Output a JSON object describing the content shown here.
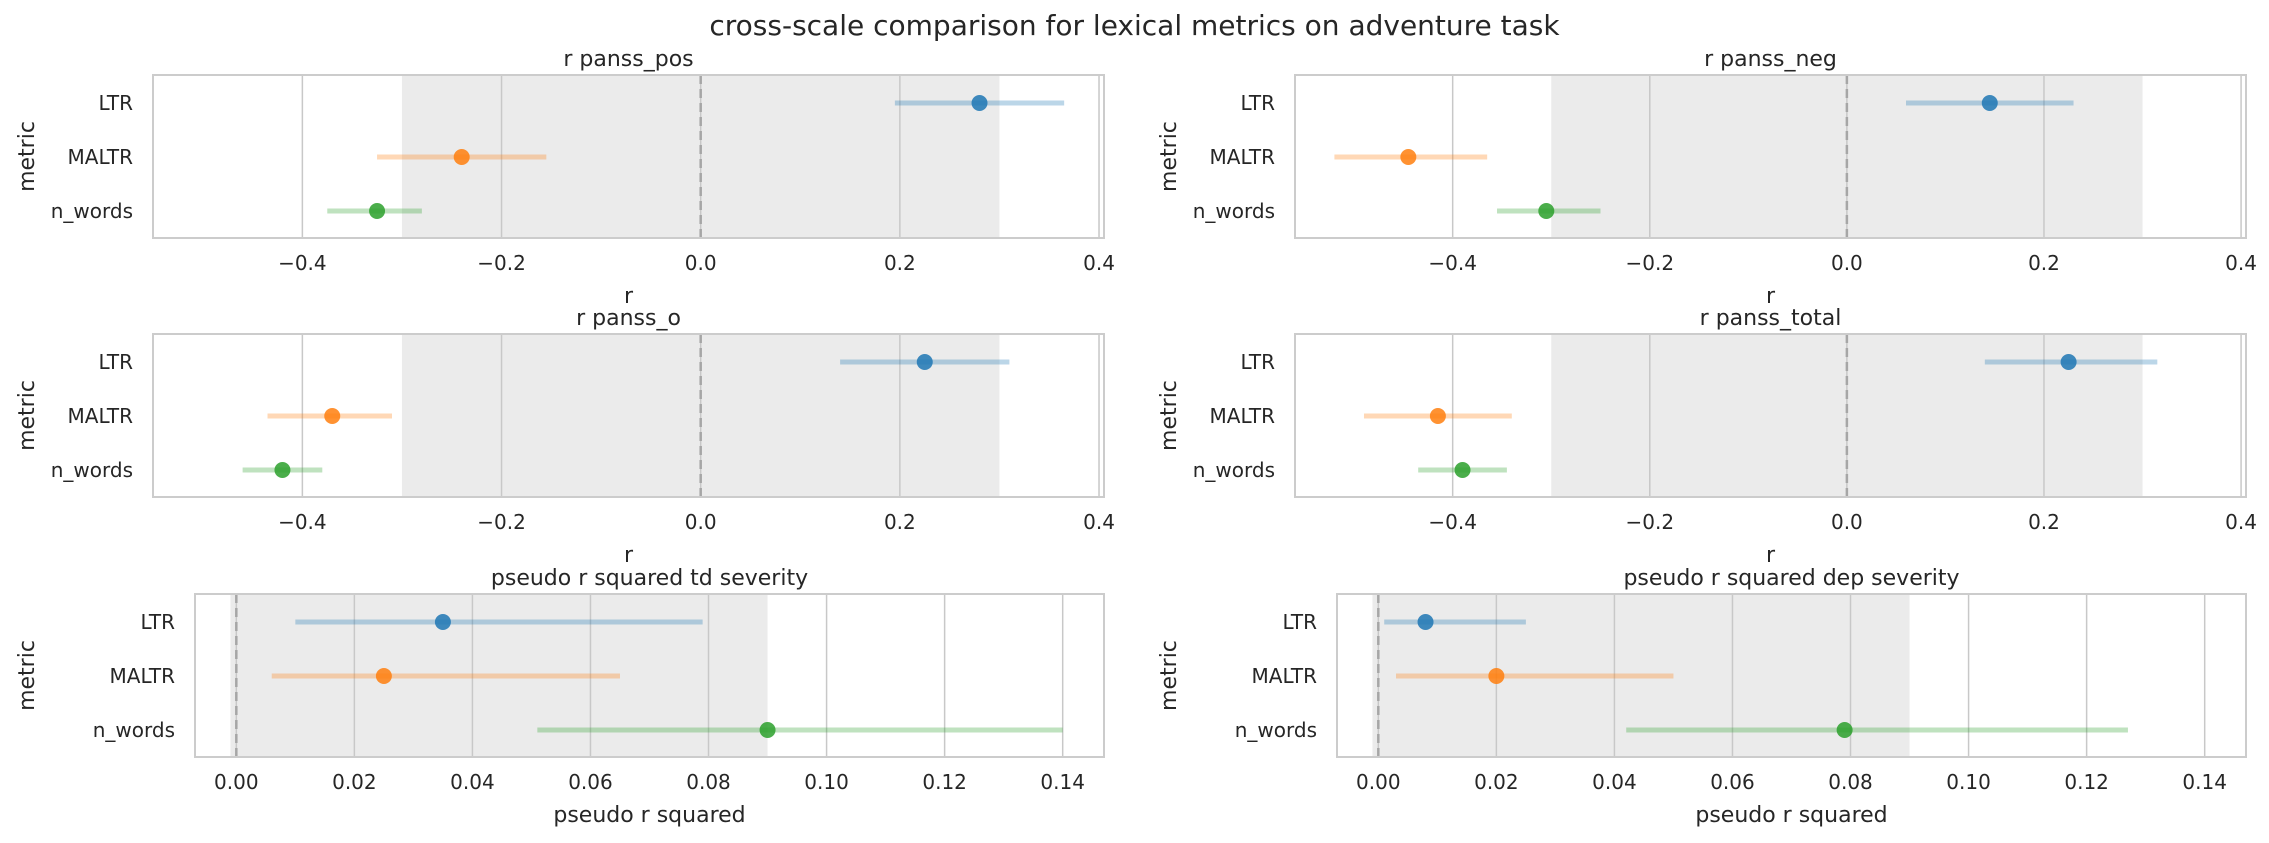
{
  "suptitle": "cross-scale comparison for lexical metrics on adventure task",
  "colors": {
    "LTR": "#1f77b4",
    "MALTR": "#ff7f0e",
    "n_words": "#2ca02c",
    "band": "#ebebeb",
    "grid": "#c8c8c8",
    "frame": "#cccccc"
  },
  "chart_data": [
    {
      "type": "scatter",
      "title": "r panss_pos",
      "xlabel": "r",
      "ylabel": "metric",
      "xlim": [
        -0.55,
        0.405
      ],
      "xticks": [
        -0.4,
        -0.2,
        0.0,
        0.2,
        0.4
      ],
      "xtick_labels": [
        "−0.4",
        "−0.2",
        "0.0",
        "0.2",
        "0.4"
      ],
      "band": [
        -0.3,
        0.3
      ],
      "refline": 0.0,
      "categories": [
        "LTR",
        "MALTR",
        "n_words"
      ],
      "points": [
        {
          "metric": "LTR",
          "value": 0.28,
          "ci": [
            0.195,
            0.365
          ]
        },
        {
          "metric": "MALTR",
          "value": -0.24,
          "ci": [
            -0.325,
            -0.155
          ]
        },
        {
          "metric": "n_words",
          "value": -0.325,
          "ci": [
            -0.375,
            -0.28
          ]
        }
      ]
    },
    {
      "type": "scatter",
      "title": "r panss_neg",
      "xlabel": "r",
      "ylabel": "metric",
      "xlim": [
        -0.56,
        0.405
      ],
      "xticks": [
        -0.4,
        -0.2,
        0.0,
        0.2,
        0.4
      ],
      "xtick_labels": [
        "−0.4",
        "−0.2",
        "0.0",
        "0.2",
        "0.4"
      ],
      "band": [
        -0.3,
        0.3
      ],
      "refline": 0.0,
      "categories": [
        "LTR",
        "MALTR",
        "n_words"
      ],
      "points": [
        {
          "metric": "LTR",
          "value": 0.145,
          "ci": [
            0.06,
            0.23
          ]
        },
        {
          "metric": "MALTR",
          "value": -0.445,
          "ci": [
            -0.52,
            -0.365
          ]
        },
        {
          "metric": "n_words",
          "value": -0.305,
          "ci": [
            -0.355,
            -0.25
          ]
        }
      ]
    },
    {
      "type": "scatter",
      "title": "r panss_o",
      "xlabel": "r",
      "ylabel": "metric",
      "xlim": [
        -0.55,
        0.405
      ],
      "xticks": [
        -0.4,
        -0.2,
        0.0,
        0.2,
        0.4
      ],
      "xtick_labels": [
        "−0.4",
        "−0.2",
        "0.0",
        "0.2",
        "0.4"
      ],
      "band": [
        -0.3,
        0.3
      ],
      "refline": 0.0,
      "categories": [
        "LTR",
        "MALTR",
        "n_words"
      ],
      "points": [
        {
          "metric": "LTR",
          "value": 0.225,
          "ci": [
            0.14,
            0.31
          ]
        },
        {
          "metric": "MALTR",
          "value": -0.37,
          "ci": [
            -0.435,
            -0.31
          ]
        },
        {
          "metric": "n_words",
          "value": -0.42,
          "ci": [
            -0.46,
            -0.38
          ]
        }
      ]
    },
    {
      "type": "scatter",
      "title": "r panss_total",
      "xlabel": "r",
      "ylabel": "metric",
      "xlim": [
        -0.56,
        0.405
      ],
      "xticks": [
        -0.4,
        -0.2,
        0.0,
        0.2,
        0.4
      ],
      "xtick_labels": [
        "−0.4",
        "−0.2",
        "0.0",
        "0.2",
        "0.4"
      ],
      "band": [
        -0.3,
        0.3
      ],
      "refline": 0.0,
      "categories": [
        "LTR",
        "MALTR",
        "n_words"
      ],
      "points": [
        {
          "metric": "LTR",
          "value": 0.225,
          "ci": [
            0.14,
            0.315
          ]
        },
        {
          "metric": "MALTR",
          "value": -0.415,
          "ci": [
            -0.49,
            -0.34
          ]
        },
        {
          "metric": "n_words",
          "value": -0.39,
          "ci": [
            -0.435,
            -0.345
          ]
        }
      ]
    },
    {
      "type": "scatter",
      "title": "pseudo r squared td severity",
      "xlabel": "pseudo r squared",
      "ylabel": "metric",
      "xlim": [
        -0.007,
        0.147
      ],
      "xticks": [
        0.0,
        0.02,
        0.04,
        0.06,
        0.08,
        0.1,
        0.12,
        0.14
      ],
      "xtick_labels": [
        "0.00",
        "0.02",
        "0.04",
        "0.06",
        "0.08",
        "0.10",
        "0.12",
        "0.14"
      ],
      "band": [
        -0.001,
        0.09
      ],
      "refline": 0.0,
      "categories": [
        "LTR",
        "MALTR",
        "n_words"
      ],
      "points": [
        {
          "metric": "LTR",
          "value": 0.035,
          "ci": [
            0.01,
            0.079
          ]
        },
        {
          "metric": "MALTR",
          "value": 0.025,
          "ci": [
            0.006,
            0.065
          ]
        },
        {
          "metric": "n_words",
          "value": 0.09,
          "ci": [
            0.051,
            0.14
          ]
        }
      ]
    },
    {
      "type": "scatter",
      "title": "pseudo r squared dep severity",
      "xlabel": "pseudo r squared",
      "ylabel": "metric",
      "xlim": [
        -0.007,
        0.147
      ],
      "xticks": [
        0.0,
        0.02,
        0.04,
        0.06,
        0.08,
        0.1,
        0.12,
        0.14
      ],
      "xtick_labels": [
        "0.00",
        "0.02",
        "0.04",
        "0.06",
        "0.08",
        "0.10",
        "0.12",
        "0.14"
      ],
      "band": [
        -0.001,
        0.09
      ],
      "refline": 0.0,
      "categories": [
        "LTR",
        "MALTR",
        "n_words"
      ],
      "points": [
        {
          "metric": "LTR",
          "value": 0.008,
          "ci": [
            0.001,
            0.025
          ]
        },
        {
          "metric": "MALTR",
          "value": 0.02,
          "ci": [
            0.003,
            0.05
          ]
        },
        {
          "metric": "n_words",
          "value": 0.079,
          "ci": [
            0.042,
            0.127
          ]
        }
      ]
    }
  ]
}
